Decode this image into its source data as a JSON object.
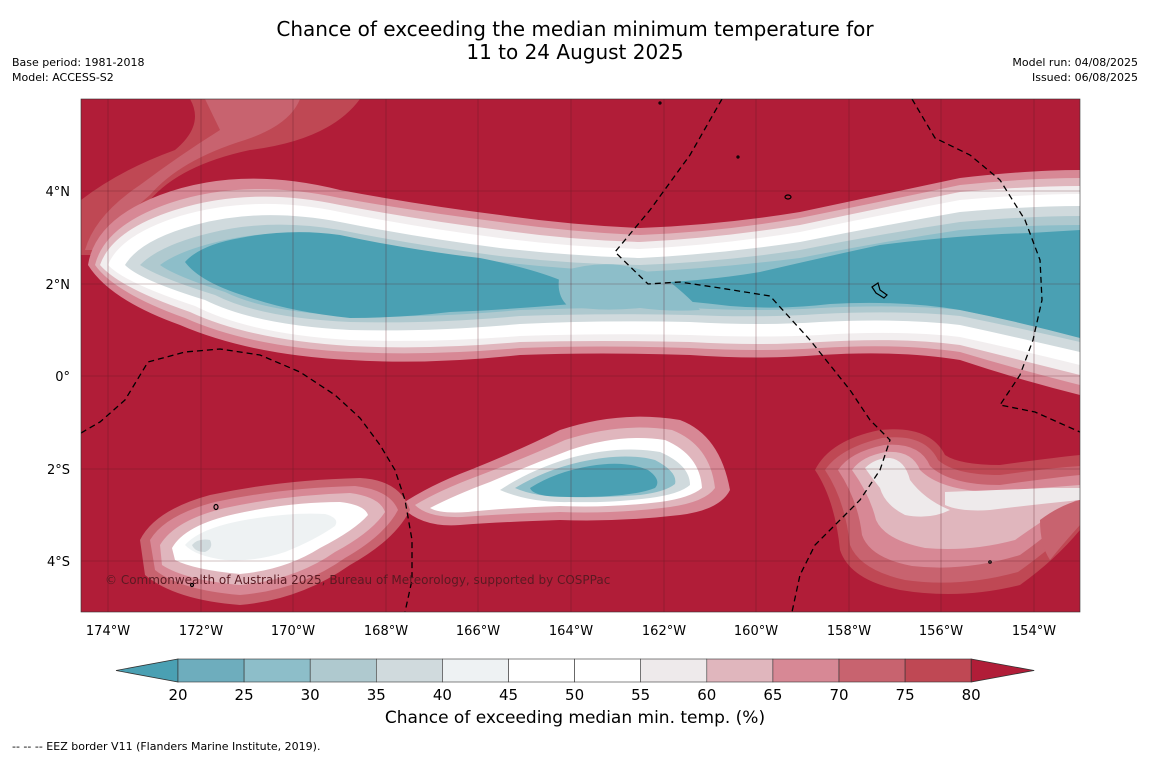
{
  "title_line1": "Chance of exceeding the median minimum temperature for",
  "title_line2": "11 to 24 August 2025",
  "meta_left": [
    "Base period: 1981-2018",
    "Model: ACCESS-S2"
  ],
  "meta_right": [
    "Model run: 04/08/2025",
    "Issued: 06/08/2025"
  ],
  "map": {
    "lon_ticks": [
      "174°W",
      "172°W",
      "170°W",
      "168°W",
      "166°W",
      "164°W",
      "162°W",
      "160°W",
      "158°W",
      "156°W",
      "154°W"
    ],
    "lat_ticks": [
      "4°N",
      "2°N",
      "0°",
      "2°S",
      "4°S"
    ],
    "copyright": "© Commonwealth of Australia 2025, Bureau of Meteorology, supported by COSPPac",
    "background_color": "#b11d38"
  },
  "colorbar": {
    "ticks": [
      "20",
      "25",
      "30",
      "35",
      "40",
      "45",
      "50",
      "55",
      "60",
      "65",
      "70",
      "75",
      "80"
    ],
    "colors": [
      "#4aa0b3",
      "#6eadbd",
      "#8dbec9",
      "#afc9cf",
      "#d0dadd",
      "#eef2f3",
      "#ffffff",
      "#ffffff",
      "#eeeaeb",
      "#e0b6bd",
      "#d78895",
      "#c8636f",
      "#bf4854",
      "#b11d38"
    ],
    "title": "Chance of exceeding median min. temp. (%)"
  },
  "footnote": "--  --  -- EEZ border V11 (Flanders Marine Institute, 2019)."
}
